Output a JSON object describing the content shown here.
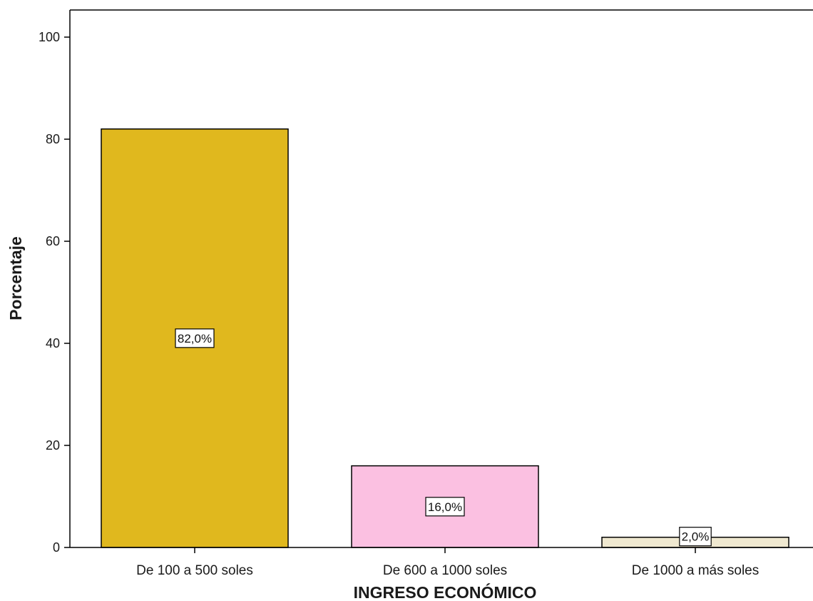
{
  "chart_data": {
    "type": "bar",
    "categories": [
      "De 100 a 500 soles",
      "De 600 a 1000 soles",
      "De 1000 a más soles"
    ],
    "values": [
      82.0,
      16.0,
      2.0
    ],
    "data_labels": [
      "82,0%",
      "16,0%",
      "2,0%"
    ],
    "colors": [
      "#e0b81e",
      "#fbc0e1",
      "#efe8d0"
    ],
    "xlabel": "INGRESO ECONÓMICO",
    "ylabel": "Porcentaje",
    "ylim": [
      0,
      100
    ],
    "yticks": [
      0,
      20,
      40,
      60,
      80,
      100
    ],
    "grid": false,
    "legend": "none"
  }
}
